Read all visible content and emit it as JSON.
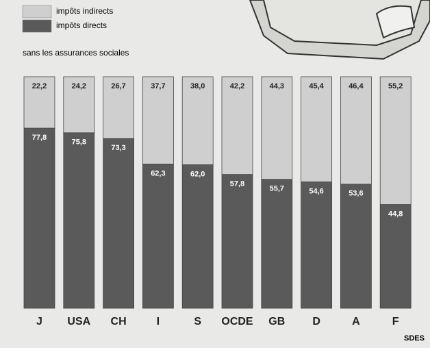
{
  "chart_data": {
    "type": "stacked-bar",
    "subtitle": "sans les assurances sociales",
    "source": "SDES",
    "categories": [
      "J",
      "USA",
      "CH",
      "I",
      "S",
      "OCDE",
      "GB",
      "D",
      "A",
      "F"
    ],
    "series": [
      {
        "name": "impôts directs",
        "color": "#5a5a5a",
        "values": [
          77.8,
          75.8,
          73.3,
          62.3,
          62.0,
          57.8,
          55.7,
          54.6,
          53.6,
          44.8
        ],
        "value_labels": [
          "77,8",
          "75,8",
          "73,3",
          "62,3",
          "62,0",
          "57,8",
          "55,7",
          "54,6",
          "53,6",
          "44,8"
        ]
      },
      {
        "name": "impôts indirects",
        "color": "#cfcfcf",
        "values": [
          22.2,
          24.2,
          26.7,
          37.7,
          38.0,
          42.2,
          44.3,
          45.4,
          46.4,
          55.2
        ],
        "value_labels": [
          "22,2",
          "24,2",
          "26,7",
          "37,7",
          "38,0",
          "42,2",
          "44,3",
          "45,4",
          "46,4",
          "55,2"
        ]
      }
    ]
  }
}
